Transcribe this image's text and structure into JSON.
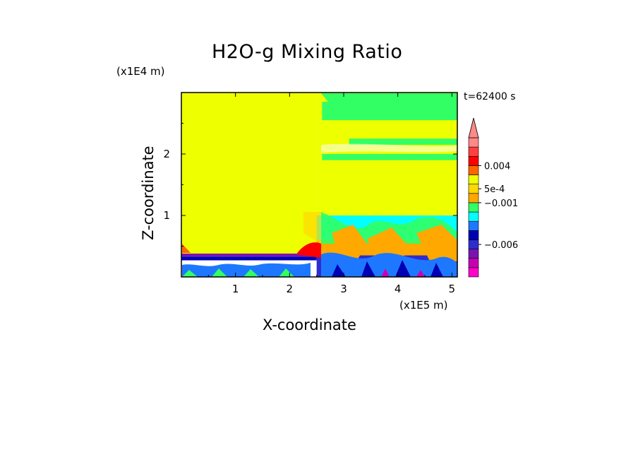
{
  "chart_data": {
    "type": "heatmap",
    "title": "H2O-g Mixing Ratio",
    "xlabel": "X-coordinate",
    "ylabel": "Z-coordinate",
    "x_scale_label": "(x1E5 m)",
    "z_scale_label": "(x1E4 m)",
    "time_label": "t=62400 s",
    "xlim": [
      0,
      5.1
    ],
    "ylim": [
      0,
      3.0
    ],
    "x_ticks": [
      1,
      2,
      3,
      4,
      5
    ],
    "y_ticks": [
      1,
      2
    ],
    "x_tick_labels": [
      "1",
      "2",
      "3",
      "4",
      "5"
    ],
    "y_tick_labels": [
      "1",
      "2"
    ],
    "colorbar": {
      "colors": [
        "#ff00c8",
        "#c800b4",
        "#7a14b0",
        "#2d2dcd",
        "#0000b4",
        "#1e78ff",
        "#00ffff",
        "#32ff64",
        "#ffa800",
        "#ffd800",
        "#eeff00",
        "#ff6600",
        "#ff0000",
        "#ff4040",
        "#ff8888"
      ],
      "tick_labels": [
        {
          "value": "0.004",
          "label": "0.004"
        },
        {
          "value": "5e-4",
          "label": "5e-4"
        },
        {
          "value": "-0.001",
          "label": "−0.001"
        },
        {
          "value": "-0.006",
          "label": "−0.006"
        }
      ],
      "extend": "max"
    },
    "regions": [
      {
        "x": [
          0,
          2.5
        ],
        "z": [
          0.38,
          3.0
        ],
        "color": "#eeff00"
      },
      {
        "x": [
          0,
          2.5
        ],
        "z": [
          0.33,
          0.38
        ],
        "color": "#7a14b0"
      },
      {
        "x": [
          0,
          2.5
        ],
        "z": [
          0.27,
          0.33
        ],
        "color": "#0000b4"
      },
      {
        "x": [
          2.5,
          5.1
        ],
        "z": [
          0.7,
          3.0
        ],
        "color": "#eeff00"
      },
      {
        "x": [
          2.6,
          5.1
        ],
        "z": [
          2.55,
          2.85
        ],
        "color": "#32ff64"
      },
      {
        "x": [
          2.6,
          5.1
        ],
        "z": [
          1.9,
          2.0
        ],
        "color": "#32ff64"
      },
      {
        "x": [
          3.1,
          5.1
        ],
        "z": [
          2.15,
          2.25
        ],
        "color": "#32ff64"
      },
      {
        "x": [
          2.5,
          5.1
        ],
        "z": [
          0.55,
          1.0
        ],
        "color": "#00ffff"
      },
      {
        "x": [
          2.5,
          5.1
        ],
        "z": [
          0.3,
          0.6
        ],
        "color": "#ffa800"
      },
      {
        "x": [
          2.5,
          5.1
        ],
        "z": [
          0,
          0.35
        ],
        "color": "#2d2dcd"
      }
    ]
  }
}
